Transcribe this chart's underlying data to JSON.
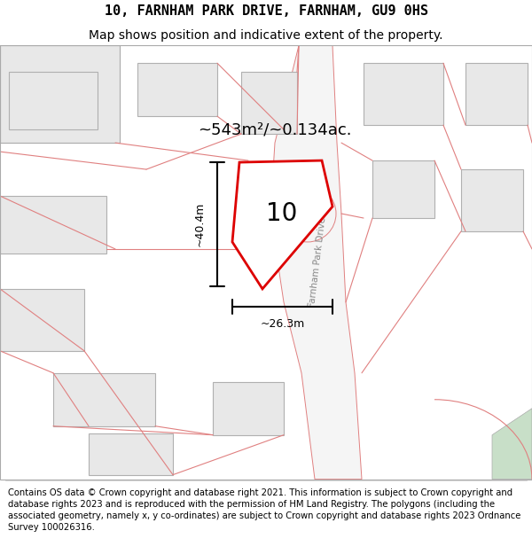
{
  "title_line1": "10, FARNHAM PARK DRIVE, FARNHAM, GU9 0HS",
  "title_line2": "Map shows position and indicative extent of the property.",
  "footer": "Contains OS data © Crown copyright and database right 2021. This information is subject to Crown copyright and database rights 2023 and is reproduced with the permission of HM Land Registry. The polygons (including the associated geometry, namely x, y co-ordinates) are subject to Crown copyright and database rights 2023 Ordnance Survey 100026316.",
  "bg_color": "#ffffff",
  "plot_outline_color": "#dd0000",
  "green_area_color": "#c8dfc8",
  "property_label": "10",
  "area_text": "~543m²/~0.134ac.",
  "dim_width": "~26.3m",
  "dim_height": "~40.4m",
  "road_label": "Farnham Park Drive",
  "title_fontsize": 11,
  "subtitle_fontsize": 10,
  "footer_fontsize": 7.2,
  "building_face": "#e8e8e8",
  "building_edge": "#aaaaaa",
  "road_line_color": "#e08080",
  "road_fill": "#f5f5f5"
}
